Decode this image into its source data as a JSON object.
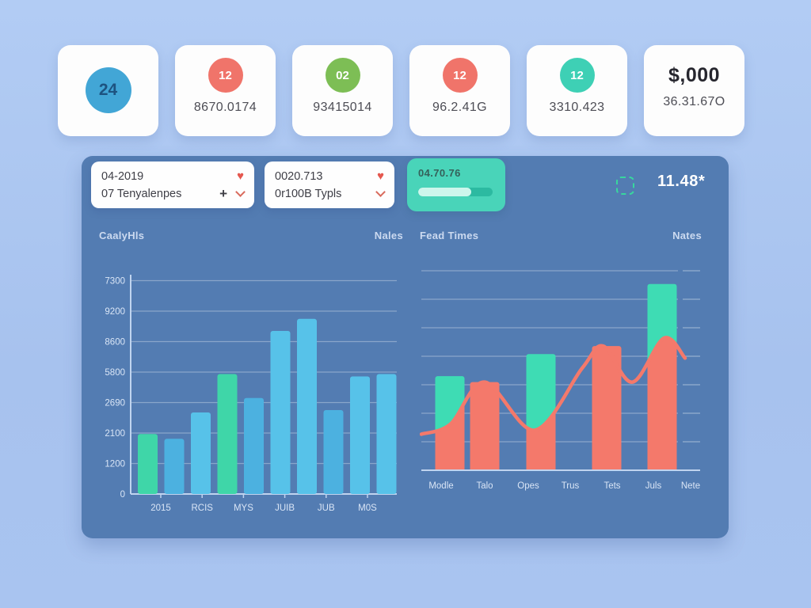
{
  "summary_cards": [
    {
      "badge": "24",
      "badge_bg": "#42a6d6",
      "badge_fg": "#1d5380",
      "value": "",
      "size": "large"
    },
    {
      "badge": "12",
      "badge_bg": "#f0746a",
      "badge_fg": "#ffffff",
      "value": "8670.0174",
      "size": "normal"
    },
    {
      "badge": "02",
      "badge_bg": "#7dbe55",
      "badge_fg": "#ffffff",
      "value": "93415014",
      "size": "normal"
    },
    {
      "badge": "12",
      "badge_bg": "#f0746a",
      "badge_fg": "#ffffff",
      "value": "96.2.41G",
      "size": "normal"
    },
    {
      "badge": "12",
      "badge_bg": "#3ed0b5",
      "badge_fg": "#ffffff",
      "value": "3310.423",
      "size": "normal"
    },
    {
      "badge": "$,000",
      "badge_bg": "",
      "badge_fg": "#26262e",
      "value": "36.31.67O",
      "size": "text"
    }
  ],
  "filter_bar": {
    "date_card": {
      "row1": "04-2019",
      "row2": "07 Tenyalenpes",
      "plus": "+",
      "heart": "♥"
    },
    "type_card": {
      "row1": "0020.713",
      "row2": "0r100B Typls",
      "heart": "♥"
    },
    "progress_card": {
      "label": "04.70.76",
      "progress_pct": 71
    },
    "percent_label": "11.48*"
  },
  "chart_data": [
    {
      "type": "bar",
      "title": "CaalyHls",
      "legend_right": "Nales",
      "y_tick_labels_bottom_to_top": [
        "0",
        "1200",
        "2100",
        "2690",
        "5800",
        "8600",
        "9200",
        "7300"
      ],
      "categories": [
        "2015",
        "RCIS",
        "MYS",
        "JUIB",
        "JUB",
        "M0S"
      ],
      "bars": [
        {
          "value_pct": 25,
          "color": "teal"
        },
        {
          "value_pct": 23,
          "color": "blue2"
        },
        {
          "value_pct": 34,
          "color": "blue"
        },
        {
          "value_pct": 50,
          "color": "teal"
        },
        {
          "value_pct": 40,
          "color": "blue2"
        },
        {
          "value_pct": 68,
          "color": "blue"
        },
        {
          "value_pct": 73,
          "color": "blue"
        },
        {
          "value_pct": 35,
          "color": "blue2"
        },
        {
          "value_pct": 49,
          "color": "blue"
        },
        {
          "value_pct": 50,
          "color": "blue"
        }
      ],
      "palette": {
        "teal": "#3fd6a8",
        "blue": "#57c2e9",
        "blue2": "#4cb1e0"
      },
      "grid": true,
      "legend_position": "top-right"
    },
    {
      "type": "bar+line",
      "title": "Fead Times",
      "legend_right": "Nates",
      "categories": [
        "Modle",
        "Talo",
        "Opes",
        "Trus",
        "Tets",
        "Juls",
        "Nete"
      ],
      "bars": [
        {
          "value_pct": 47,
          "color": "teal"
        },
        {
          "value_pct": 44,
          "color": "salmon"
        },
        {
          "value_pct": 58,
          "color": "teal"
        },
        {
          "value_pct": 62,
          "color": "salmon"
        },
        {
          "value_pct": 93,
          "color": "teal"
        }
      ],
      "line_points_pct": [
        [
          0,
          18
        ],
        [
          11,
          23
        ],
        [
          24,
          44
        ],
        [
          43,
          20
        ],
        [
          61,
          51
        ],
        [
          69,
          62
        ],
        [
          80,
          44
        ],
        [
          92,
          66
        ],
        [
          100,
          56
        ]
      ],
      "palette": {
        "teal": "#3edcb4",
        "salmon": "#f4796b"
      },
      "grid": true,
      "legend_position": "top-right"
    }
  ],
  "colors": {
    "panel": "#537cb2",
    "grid_line": "rgba(255,255,255,0.32)",
    "axis_line": "#c0d4ef",
    "tick_text": "#d9e5f6",
    "header_text": "#ccdaf0",
    "heart": "#e5584f",
    "chevron": "#d96a5c",
    "scan_border": "#38d79e",
    "progress_track": "#2cbaa1",
    "progress_fill": "#cdf6ec"
  }
}
